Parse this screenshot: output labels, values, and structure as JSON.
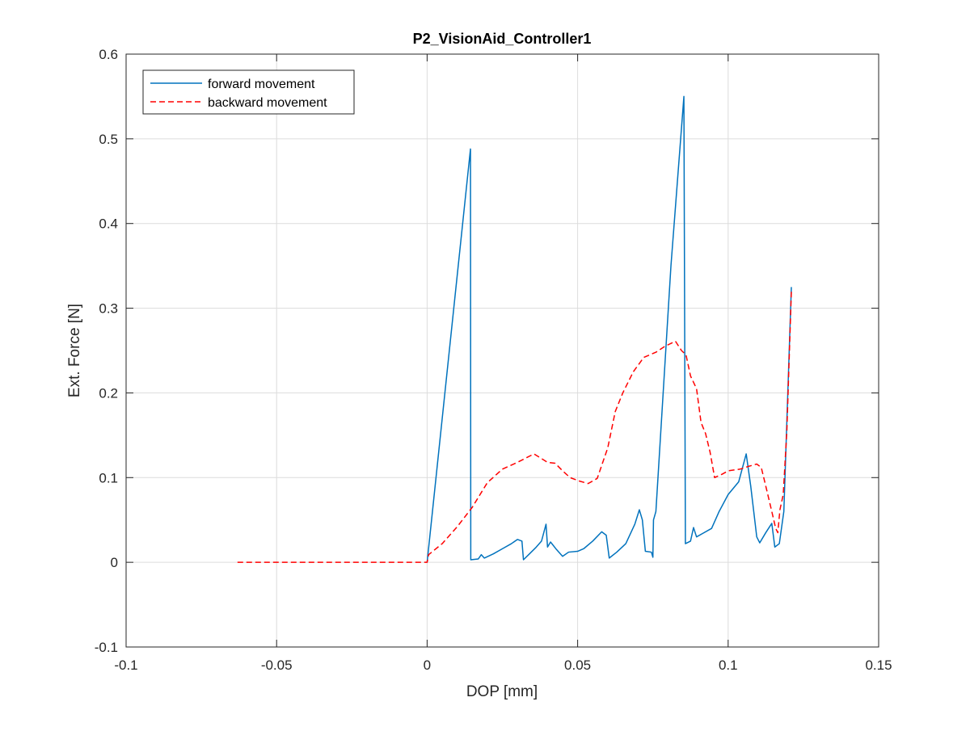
{
  "chart_data": {
    "type": "line",
    "title": "P2_VisionAid_Controller1",
    "xlabel": "DOP [mm]",
    "ylabel": "Ext. Force [N]",
    "xlim": [
      -0.1,
      0.15
    ],
    "ylim": [
      -0.1,
      0.6
    ],
    "xticks": [
      -0.1,
      -0.05,
      0,
      0.05,
      0.1,
      0.15
    ],
    "xtick_labels": [
      "-0.1",
      "-0.05",
      "0",
      "0.05",
      "0.1",
      "0.15"
    ],
    "yticks": [
      -0.1,
      0,
      0.1,
      0.2,
      0.3,
      0.4,
      0.5,
      0.6
    ],
    "ytick_labels": [
      "-0.1",
      "0",
      "0.1",
      "0.2",
      "0.3",
      "0.4",
      "0.5",
      "0.6"
    ],
    "grid": true,
    "legend_position": "top-left",
    "series": [
      {
        "name": "forward movement",
        "color": "#0072BD",
        "dash": "solid",
        "points": [
          [
            0.0,
            0.0
          ],
          [
            0.0144,
            0.488
          ],
          [
            0.0145,
            0.003
          ],
          [
            0.017,
            0.004
          ],
          [
            0.018,
            0.009
          ],
          [
            0.019,
            0.005
          ],
          [
            0.022,
            0.01
          ],
          [
            0.025,
            0.016
          ],
          [
            0.028,
            0.022
          ],
          [
            0.03,
            0.027
          ],
          [
            0.0315,
            0.025
          ],
          [
            0.032,
            0.003
          ],
          [
            0.034,
            0.01
          ],
          [
            0.036,
            0.017
          ],
          [
            0.038,
            0.025
          ],
          [
            0.0395,
            0.045
          ],
          [
            0.04,
            0.018
          ],
          [
            0.041,
            0.024
          ],
          [
            0.043,
            0.015
          ],
          [
            0.045,
            0.007
          ],
          [
            0.047,
            0.012
          ],
          [
            0.05,
            0.013
          ],
          [
            0.052,
            0.016
          ],
          [
            0.055,
            0.025
          ],
          [
            0.058,
            0.036
          ],
          [
            0.0595,
            0.032
          ],
          [
            0.0605,
            0.005
          ],
          [
            0.063,
            0.012
          ],
          [
            0.066,
            0.022
          ],
          [
            0.069,
            0.045
          ],
          [
            0.0705,
            0.062
          ],
          [
            0.0715,
            0.05
          ],
          [
            0.0725,
            0.013
          ],
          [
            0.0745,
            0.012
          ],
          [
            0.075,
            0.006
          ],
          [
            0.0752,
            0.05
          ],
          [
            0.076,
            0.06
          ],
          [
            0.081,
            0.35
          ],
          [
            0.0853,
            0.55
          ],
          [
            0.0858,
            0.022
          ],
          [
            0.0875,
            0.025
          ],
          [
            0.0885,
            0.041
          ],
          [
            0.0895,
            0.03
          ],
          [
            0.0915,
            0.034
          ],
          [
            0.0945,
            0.04
          ],
          [
            0.097,
            0.06
          ],
          [
            0.1,
            0.08
          ],
          [
            0.1035,
            0.095
          ],
          [
            0.106,
            0.128
          ],
          [
            0.1075,
            0.09
          ],
          [
            0.1095,
            0.03
          ],
          [
            0.1105,
            0.023
          ],
          [
            0.1125,
            0.035
          ],
          [
            0.1145,
            0.046
          ],
          [
            0.1155,
            0.018
          ],
          [
            0.117,
            0.022
          ],
          [
            0.1185,
            0.06
          ],
          [
            0.121,
            0.325
          ]
        ]
      },
      {
        "name": "backward movement",
        "color": "#FF0000",
        "dash": "dashed",
        "points": [
          [
            -0.063,
            0.0
          ],
          [
            0.0,
            0.0
          ],
          [
            0.0005,
            0.009
          ],
          [
            0.005,
            0.022
          ],
          [
            0.01,
            0.042
          ],
          [
            0.015,
            0.065
          ],
          [
            0.02,
            0.094
          ],
          [
            0.025,
            0.11
          ],
          [
            0.03,
            0.118
          ],
          [
            0.0355,
            0.128
          ],
          [
            0.04,
            0.118
          ],
          [
            0.0425,
            0.117
          ],
          [
            0.045,
            0.108
          ],
          [
            0.0475,
            0.1
          ],
          [
            0.0505,
            0.096
          ],
          [
            0.0535,
            0.093
          ],
          [
            0.0565,
            0.099
          ],
          [
            0.06,
            0.135
          ],
          [
            0.0625,
            0.178
          ],
          [
            0.065,
            0.2
          ],
          [
            0.0685,
            0.225
          ],
          [
            0.072,
            0.242
          ],
          [
            0.076,
            0.248
          ],
          [
            0.079,
            0.255
          ],
          [
            0.0825,
            0.261
          ],
          [
            0.0845,
            0.25
          ],
          [
            0.086,
            0.245
          ],
          [
            0.0875,
            0.22
          ],
          [
            0.0895,
            0.205
          ],
          [
            0.091,
            0.165
          ],
          [
            0.0925,
            0.152
          ],
          [
            0.094,
            0.13
          ],
          [
            0.0955,
            0.1
          ],
          [
            0.098,
            0.104
          ],
          [
            0.1,
            0.108
          ],
          [
            0.104,
            0.11
          ],
          [
            0.1065,
            0.113
          ],
          [
            0.1095,
            0.116
          ],
          [
            0.111,
            0.112
          ],
          [
            0.1125,
            0.09
          ],
          [
            0.1145,
            0.06
          ],
          [
            0.1158,
            0.04
          ],
          [
            0.1165,
            0.035
          ],
          [
            0.1172,
            0.062
          ],
          [
            0.1183,
            0.08
          ],
          [
            0.1195,
            0.155
          ],
          [
            0.121,
            0.32
          ]
        ]
      }
    ]
  }
}
